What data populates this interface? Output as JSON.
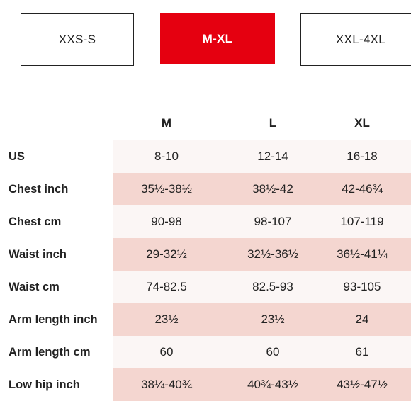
{
  "size_tabs": [
    {
      "label": "XXS-S",
      "selected": false
    },
    {
      "label": "M-XL",
      "selected": true
    },
    {
      "label": "XXL-4XL",
      "selected": false
    }
  ],
  "colors": {
    "accent": "#e50010",
    "row_shade_light": "#fbf6f5",
    "row_shade_dark": "#f4d6d0"
  },
  "size_table": {
    "columns": [
      "M",
      "L",
      "XL"
    ],
    "rows": [
      {
        "label": "US",
        "values": [
          "8-10",
          "12-14",
          "16-18"
        ]
      },
      {
        "label": "Chest inch",
        "values": [
          "35½-38½",
          "38½-42",
          "42-46¾"
        ]
      },
      {
        "label": "Chest cm",
        "values": [
          "90-98",
          "98-107",
          "107-119"
        ]
      },
      {
        "label": "Waist inch",
        "values": [
          "29-32½",
          "32½-36½",
          "36½-41¼"
        ]
      },
      {
        "label": "Waist cm",
        "values": [
          "74-82.5",
          "82.5-93",
          "93-105"
        ]
      },
      {
        "label": "Arm length inch",
        "values": [
          "23½",
          "23½",
          "24"
        ]
      },
      {
        "label": "Arm length cm",
        "values": [
          "60",
          "60",
          "61"
        ]
      },
      {
        "label": "Low hip inch",
        "values": [
          "38¼-40¾",
          "40¾-43½",
          "43½-47½"
        ]
      }
    ]
  }
}
